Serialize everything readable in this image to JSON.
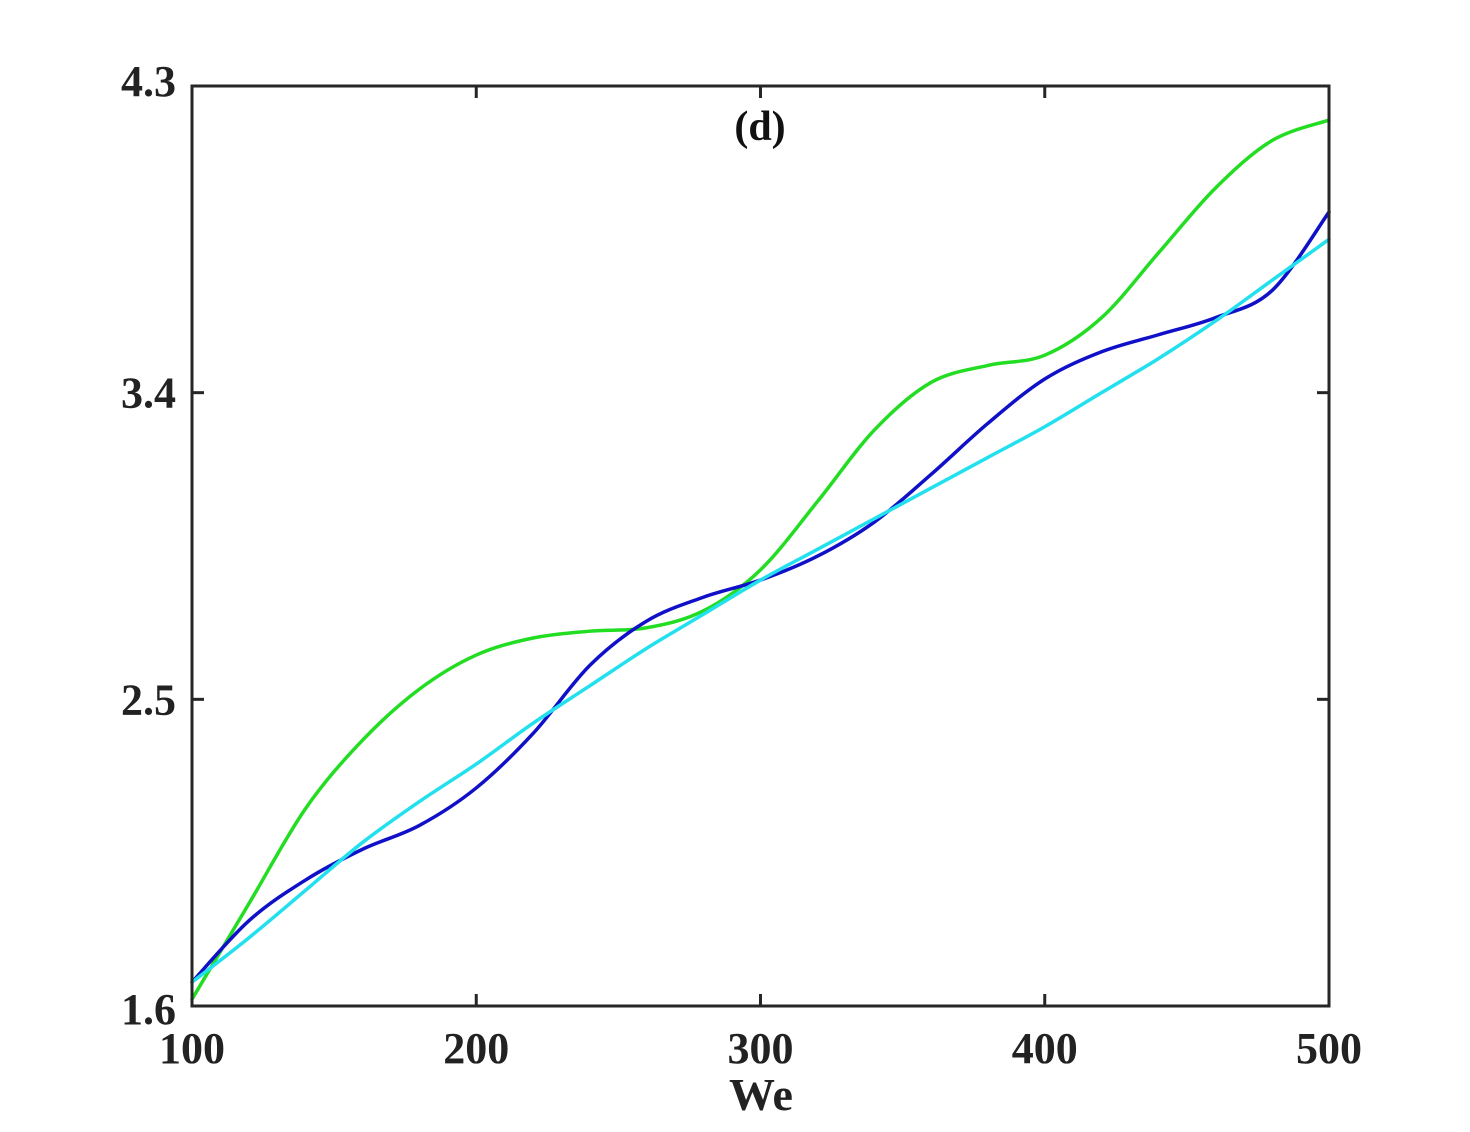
{
  "chart_data": {
    "type": "line",
    "panel_label": "(d)",
    "xlabel": "We",
    "ylabel": "",
    "xlim": [
      100,
      500
    ],
    "ylim": [
      1.6,
      4.3
    ],
    "xticks": [
      100,
      200,
      300,
      400,
      500
    ],
    "xtick_labels": [
      "100",
      "200",
      "300",
      "400",
      "500"
    ],
    "yticks": [
      1.6,
      2.5,
      3.4,
      4.3
    ],
    "ytick_labels": [
      "1.6",
      "2.5",
      "3.4",
      "4.3"
    ],
    "grid": false,
    "legend": "none",
    "x": [
      100,
      120,
      140,
      160,
      180,
      200,
      220,
      240,
      260,
      280,
      300,
      320,
      340,
      360,
      380,
      400,
      420,
      440,
      460,
      480,
      500
    ],
    "series": [
      {
        "color": "#22dd22",
        "values": [
          1.62,
          1.9,
          2.18,
          2.38,
          2.53,
          2.63,
          2.68,
          2.7,
          2.71,
          2.76,
          2.88,
          3.08,
          3.29,
          3.43,
          3.48,
          3.51,
          3.62,
          3.81,
          4.0,
          4.14,
          4.2
        ]
      },
      {
        "color": "#1010c8",
        "values": [
          1.67,
          1.85,
          1.97,
          2.06,
          2.13,
          2.24,
          2.4,
          2.6,
          2.73,
          2.8,
          2.85,
          2.92,
          3.02,
          3.16,
          3.31,
          3.44,
          3.52,
          3.57,
          3.62,
          3.7,
          3.93
        ]
      },
      {
        "color": "#22e0ee",
        "values": [
          1.67,
          1.8,
          1.94,
          2.08,
          2.2,
          2.31,
          2.43,
          2.54,
          2.65,
          2.75,
          2.85,
          2.94,
          3.03,
          3.12,
          3.21,
          3.3,
          3.4,
          3.5,
          3.61,
          3.73,
          3.85
        ]
      }
    ]
  }
}
